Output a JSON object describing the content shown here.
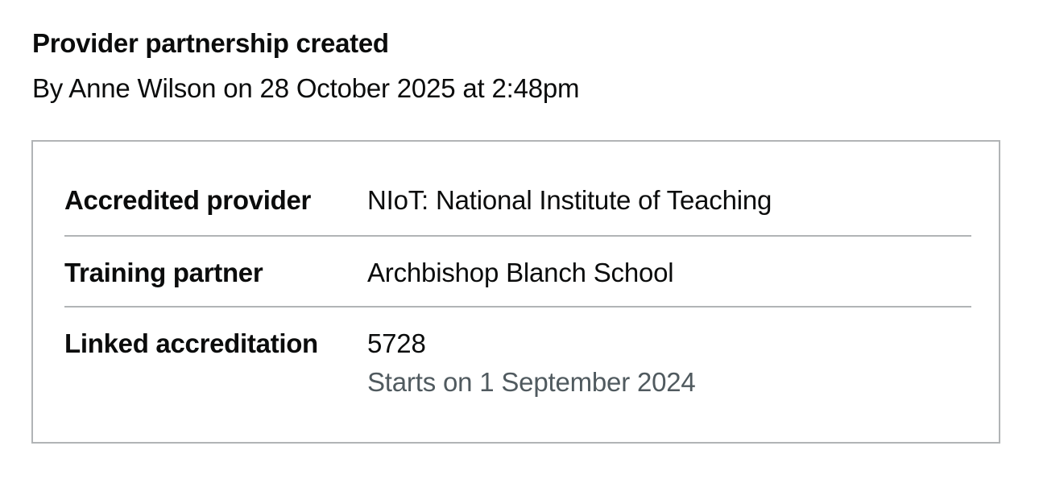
{
  "event": {
    "title": "Provider partnership created",
    "meta": "By Anne Wilson on 28 October 2025 at 2:48pm"
  },
  "summary": {
    "rows": [
      {
        "key": "Accredited provider",
        "value": "NIoT: National Institute of Teaching"
      },
      {
        "key": "Training partner",
        "value": "Archbishop Blanch School"
      },
      {
        "key": "Linked accreditation",
        "value": "5728",
        "hint": "Starts on 1 September 2024"
      }
    ]
  },
  "colors": {
    "text": "#0b0c0c",
    "border": "#b1b4b6",
    "secondary_text": "#505a5f"
  }
}
